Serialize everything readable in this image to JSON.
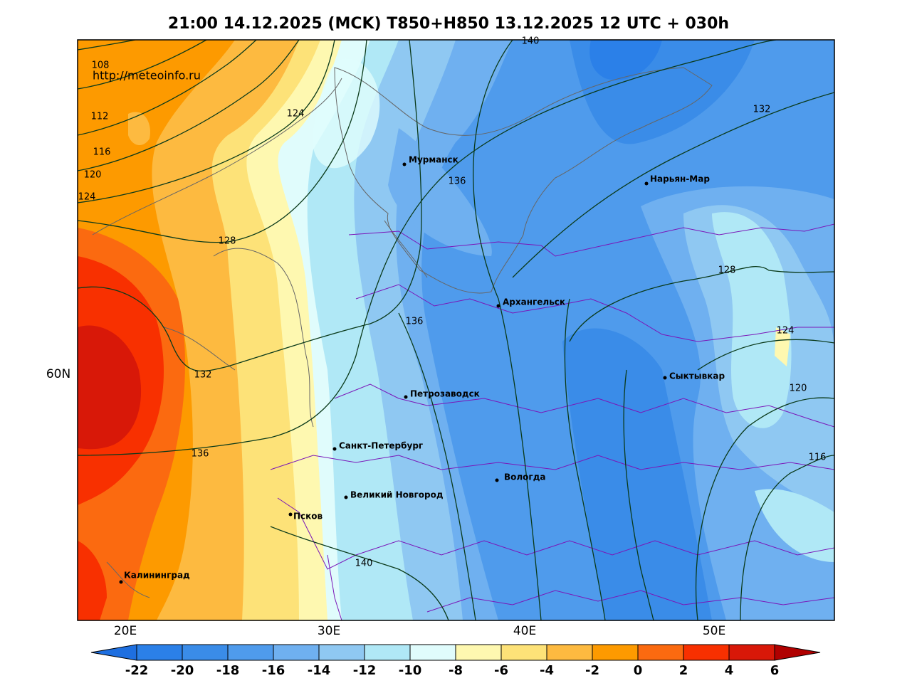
{
  "header": {
    "title": "21:00 14.12.2025 (MCK) T850+H850 13.12.2025 12 UTC + 030h",
    "source_url": "http://meteoinfo.ru"
  },
  "contour_labels": [
    108,
    112,
    116,
    120,
    124,
    124,
    128,
    132,
    136,
    140,
    136,
    136,
    132,
    128,
    124,
    120,
    116,
    140
  ],
  "cities": [
    "Мурманск",
    "Нарьян-Мар",
    "Архангельск",
    "Сыктывкар",
    "Петрозаводск",
    "Санкт-Петербург",
    "Вологда",
    "Великий Новгород",
    "Псков",
    "Калининград"
  ],
  "axes": {
    "lon_labels": [
      "20E",
      "30E",
      "40E",
      "50E"
    ],
    "lat_labels": [
      "60N"
    ]
  },
  "colorbar": {
    "ticks": [
      -22,
      -20,
      -18,
      -16,
      -14,
      -12,
      -10,
      -8,
      -6,
      -4,
      -2,
      0,
      2,
      4,
      6
    ],
    "colors": [
      "#2b80e8",
      "#3a8ce8",
      "#4f9bec",
      "#6fb0f0",
      "#8fc8f2",
      "#b0e8f6",
      "#e0fcfc",
      "#fef8b0",
      "#fde278",
      "#fdba40",
      "#fd9a00",
      "#fb6a10",
      "#f83000",
      "#d81808"
    ],
    "under_color": "#1e6fe0",
    "over_color": "#b00000"
  }
}
